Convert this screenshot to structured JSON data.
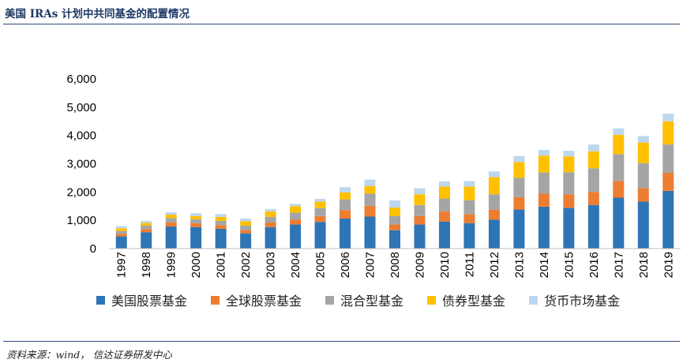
{
  "header": {
    "title": "美国 IRAs 计划中共同基金的配置情况"
  },
  "footer": {
    "source": "资料来源：wind，  信达证券研发中心"
  },
  "chart_data": {
    "type": "bar",
    "stacked": true,
    "title": "美国 IRAs 计划中共同基金的配置情况",
    "xlabel": "",
    "ylabel": "",
    "ylim": [
      0,
      6000
    ],
    "yticks": [
      "0",
      "1,000",
      "2,000",
      "3,000",
      "4,000",
      "5,000",
      "6,000"
    ],
    "categories": [
      "1997",
      "1998",
      "1999",
      "2000",
      "2001",
      "2002",
      "2003",
      "2004",
      "2005",
      "2006",
      "2007",
      "2008",
      "2009",
      "2010",
      "2011",
      "2012",
      "2013",
      "2014",
      "2015",
      "2016",
      "2017",
      "2018",
      "2019"
    ],
    "legend_position": "bottom",
    "series": [
      {
        "name": "美国股票基金",
        "color": "#2e75b6",
        "values": [
          430,
          580,
          780,
          760,
          700,
          540,
          760,
          850,
          940,
          1060,
          1130,
          650,
          850,
          950,
          900,
          1020,
          1380,
          1480,
          1440,
          1540,
          1800,
          1660,
          2040
        ]
      },
      {
        "name": "全球股票基金",
        "color": "#ed7d31",
        "values": [
          90,
          110,
          150,
          140,
          130,
          110,
          160,
          180,
          210,
          300,
          380,
          200,
          300,
          360,
          320,
          350,
          440,
          460,
          480,
          460,
          590,
          480,
          640
        ]
      },
      {
        "name": "混合型基金",
        "color": "#a5a5a5",
        "values": [
          100,
          120,
          150,
          140,
          150,
          160,
          200,
          240,
          280,
          380,
          430,
          300,
          390,
          460,
          490,
          550,
          680,
          750,
          780,
          840,
          950,
          880,
          1000
        ]
      },
      {
        "name": "债券型基金",
        "color": "#ffc000",
        "values": [
          100,
          100,
          120,
          110,
          140,
          160,
          200,
          230,
          230,
          250,
          270,
          300,
          380,
          420,
          480,
          610,
          560,
          600,
          560,
          600,
          680,
          730,
          820
        ]
      },
      {
        "name": "货币市场基金",
        "color": "#bdd7ee",
        "values": [
          70,
          70,
          90,
          100,
          100,
          90,
          80,
          80,
          100,
          180,
          230,
          250,
          210,
          190,
          200,
          200,
          210,
          200,
          200,
          240,
          230,
          230,
          270
        ]
      }
    ]
  }
}
